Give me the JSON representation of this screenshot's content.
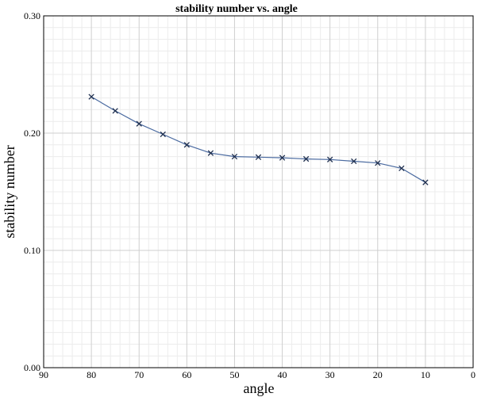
{
  "chart_data": {
    "type": "line",
    "title": "stability number vs. angle",
    "xlabel": "angle",
    "ylabel": "stability number",
    "xlim": [
      90,
      0
    ],
    "ylim": [
      0,
      0.3
    ],
    "x_reversed": true,
    "grid": true,
    "x_ticks": [
      "90",
      "80",
      "70",
      "60",
      "50",
      "40",
      "30",
      "20",
      "10",
      "0"
    ],
    "y_ticks": [
      "0.00",
      "0.10",
      "0.20",
      "0.30"
    ],
    "series": [
      {
        "color": "#4a6aa0",
        "marker": "x",
        "x": [
          80,
          75,
          70,
          65,
          60,
          55,
          50,
          45,
          40,
          35,
          30,
          25,
          20,
          15,
          10
        ],
        "y": [
          0.231,
          0.219,
          0.208,
          0.199,
          0.19,
          0.183,
          0.18,
          0.1795,
          0.179,
          0.178,
          0.1775,
          0.176,
          0.1745,
          0.17,
          0.158
        ]
      }
    ]
  }
}
